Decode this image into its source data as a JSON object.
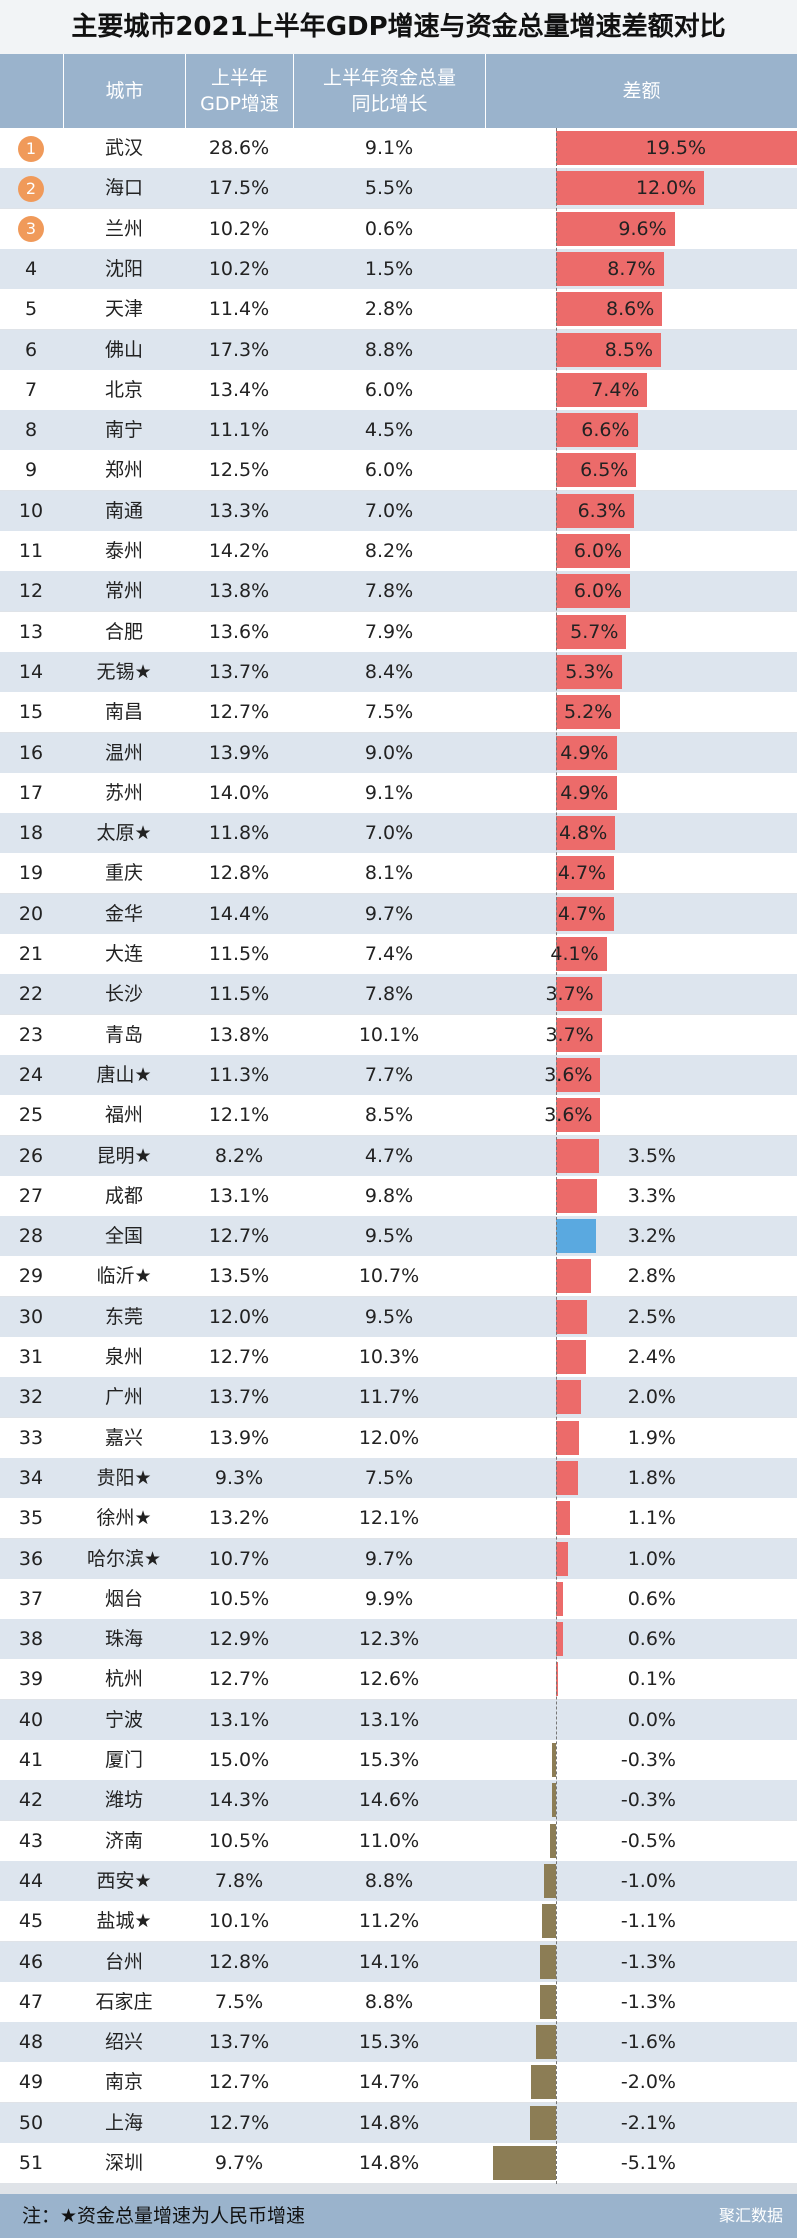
{
  "title": "主要城市2021上半年GDP增速与资金总量增速差额对比",
  "headers": {
    "rank": "",
    "city": "城市",
    "gdp": [
      "上半年",
      "GDP增速"
    ],
    "fund": [
      "上半年资金总量",
      "同比增长"
    ],
    "diff": "差额"
  },
  "footer_note": "注：★资金总量增速为人民币增速",
  "brand": "聚汇数据",
  "colors": {
    "positive": "#ec6b6a",
    "average": "#5aa9e0",
    "negative": "#8c7d55",
    "medal": "#f09a5a"
  },
  "chart_data": {
    "type": "table",
    "columns": [
      "城市",
      "上半年GDP增速",
      "上半年资金总量同比增长",
      "差额"
    ],
    "diff_range": [
      -5.1,
      19.5
    ],
    "rows": [
      {
        "rank": "1",
        "city": "武汉",
        "gdp": "28.6%",
        "fund": "9.1%",
        "diff": "19.5%",
        "value": 19.5
      },
      {
        "rank": "2",
        "city": "海口",
        "gdp": "17.5%",
        "fund": "5.5%",
        "diff": "12.0%",
        "value": 12.0
      },
      {
        "rank": "3",
        "city": "兰州",
        "gdp": "10.2%",
        "fund": "0.6%",
        "diff": "9.6%",
        "value": 9.6
      },
      {
        "rank": "4",
        "city": "沈阳",
        "gdp": "10.2%",
        "fund": "1.5%",
        "diff": "8.7%",
        "value": 8.7
      },
      {
        "rank": "5",
        "city": "天津",
        "gdp": "11.4%",
        "fund": "2.8%",
        "diff": "8.6%",
        "value": 8.6
      },
      {
        "rank": "6",
        "city": "佛山",
        "gdp": "17.3%",
        "fund": "8.8%",
        "diff": "8.5%",
        "value": 8.5
      },
      {
        "rank": "7",
        "city": "北京",
        "gdp": "13.4%",
        "fund": "6.0%",
        "diff": "7.4%",
        "value": 7.4
      },
      {
        "rank": "8",
        "city": "南宁",
        "gdp": "11.1%",
        "fund": "4.5%",
        "diff": "6.6%",
        "value": 6.6
      },
      {
        "rank": "9",
        "city": "郑州",
        "gdp": "12.5%",
        "fund": "6.0%",
        "diff": "6.5%",
        "value": 6.5
      },
      {
        "rank": "10",
        "city": "南通",
        "gdp": "13.3%",
        "fund": "7.0%",
        "diff": "6.3%",
        "value": 6.3
      },
      {
        "rank": "11",
        "city": "泰州",
        "gdp": "14.2%",
        "fund": "8.2%",
        "diff": "6.0%",
        "value": 6.0
      },
      {
        "rank": "12",
        "city": "常州",
        "gdp": "13.8%",
        "fund": "7.8%",
        "diff": "6.0%",
        "value": 6.0
      },
      {
        "rank": "13",
        "city": "合肥",
        "gdp": "13.6%",
        "fund": "7.9%",
        "diff": "5.7%",
        "value": 5.7
      },
      {
        "rank": "14",
        "city": "无锡★",
        "gdp": "13.7%",
        "fund": "8.4%",
        "diff": "5.3%",
        "value": 5.3
      },
      {
        "rank": "15",
        "city": "南昌",
        "gdp": "12.7%",
        "fund": "7.5%",
        "diff": "5.2%",
        "value": 5.2
      },
      {
        "rank": "16",
        "city": "温州",
        "gdp": "13.9%",
        "fund": "9.0%",
        "diff": "4.9%",
        "value": 4.9
      },
      {
        "rank": "17",
        "city": "苏州",
        "gdp": "14.0%",
        "fund": "9.1%",
        "diff": "4.9%",
        "value": 4.9
      },
      {
        "rank": "18",
        "city": "太原★",
        "gdp": "11.8%",
        "fund": "7.0%",
        "diff": "4.8%",
        "value": 4.8
      },
      {
        "rank": "19",
        "city": "重庆",
        "gdp": "12.8%",
        "fund": "8.1%",
        "diff": "4.7%",
        "value": 4.7
      },
      {
        "rank": "20",
        "city": "金华",
        "gdp": "14.4%",
        "fund": "9.7%",
        "diff": "4.7%",
        "value": 4.7
      },
      {
        "rank": "21",
        "city": "大连",
        "gdp": "11.5%",
        "fund": "7.4%",
        "diff": "4.1%",
        "value": 4.1
      },
      {
        "rank": "22",
        "city": "长沙",
        "gdp": "11.5%",
        "fund": "7.8%",
        "diff": "3.7%",
        "value": 3.7
      },
      {
        "rank": "23",
        "city": "青岛",
        "gdp": "13.8%",
        "fund": "10.1%",
        "diff": "3.7%",
        "value": 3.7
      },
      {
        "rank": "24",
        "city": "唐山★",
        "gdp": "11.3%",
        "fund": "7.7%",
        "diff": "3.6%",
        "value": 3.6
      },
      {
        "rank": "25",
        "city": "福州",
        "gdp": "12.1%",
        "fund": "8.5%",
        "diff": "3.6%",
        "value": 3.6
      },
      {
        "rank": "26",
        "city": "昆明★",
        "gdp": "8.2%",
        "fund": "4.7%",
        "diff": "3.5%",
        "value": 3.5
      },
      {
        "rank": "27",
        "city": "成都",
        "gdp": "13.1%",
        "fund": "9.8%",
        "diff": "3.3%",
        "value": 3.3
      },
      {
        "rank": "28",
        "city": "全国",
        "gdp": "12.7%",
        "fund": "9.5%",
        "diff": "3.2%",
        "value": 3.2
      },
      {
        "rank": "29",
        "city": "临沂★",
        "gdp": "13.5%",
        "fund": "10.7%",
        "diff": "2.8%",
        "value": 2.8
      },
      {
        "rank": "30",
        "city": "东莞",
        "gdp": "12.0%",
        "fund": "9.5%",
        "diff": "2.5%",
        "value": 2.5
      },
      {
        "rank": "31",
        "city": "泉州",
        "gdp": "12.7%",
        "fund": "10.3%",
        "diff": "2.4%",
        "value": 2.4
      },
      {
        "rank": "32",
        "city": "广州",
        "gdp": "13.7%",
        "fund": "11.7%",
        "diff": "2.0%",
        "value": 2.0
      },
      {
        "rank": "33",
        "city": "嘉兴",
        "gdp": "13.9%",
        "fund": "12.0%",
        "diff": "1.9%",
        "value": 1.9
      },
      {
        "rank": "34",
        "city": "贵阳★",
        "gdp": "9.3%",
        "fund": "7.5%",
        "diff": "1.8%",
        "value": 1.8
      },
      {
        "rank": "35",
        "city": "徐州★",
        "gdp": "13.2%",
        "fund": "12.1%",
        "diff": "1.1%",
        "value": 1.1
      },
      {
        "rank": "36",
        "city": "哈尔滨★",
        "gdp": "10.7%",
        "fund": "9.7%",
        "diff": "1.0%",
        "value": 1.0
      },
      {
        "rank": "37",
        "city": "烟台",
        "gdp": "10.5%",
        "fund": "9.9%",
        "diff": "0.6%",
        "value": 0.6
      },
      {
        "rank": "38",
        "city": "珠海",
        "gdp": "12.9%",
        "fund": "12.3%",
        "diff": "0.6%",
        "value": 0.6
      },
      {
        "rank": "39",
        "city": "杭州",
        "gdp": "12.7%",
        "fund": "12.6%",
        "diff": "0.1%",
        "value": 0.1
      },
      {
        "rank": "40",
        "city": "宁波",
        "gdp": "13.1%",
        "fund": "13.1%",
        "diff": "0.0%",
        "value": 0.0
      },
      {
        "rank": "41",
        "city": "厦门",
        "gdp": "15.0%",
        "fund": "15.3%",
        "diff": "-0.3%",
        "value": -0.3
      },
      {
        "rank": "42",
        "city": "潍坊",
        "gdp": "14.3%",
        "fund": "14.6%",
        "diff": "-0.3%",
        "value": -0.3
      },
      {
        "rank": "43",
        "city": "济南",
        "gdp": "10.5%",
        "fund": "11.0%",
        "diff": "-0.5%",
        "value": -0.5
      },
      {
        "rank": "44",
        "city": "西安★",
        "gdp": "7.8%",
        "fund": "8.8%",
        "diff": "-1.0%",
        "value": -1.0
      },
      {
        "rank": "45",
        "city": "盐城★",
        "gdp": "10.1%",
        "fund": "11.2%",
        "diff": "-1.1%",
        "value": -1.1
      },
      {
        "rank": "46",
        "city": "台州",
        "gdp": "12.8%",
        "fund": "14.1%",
        "diff": "-1.3%",
        "value": -1.3
      },
      {
        "rank": "47",
        "city": "石家庄",
        "gdp": "7.5%",
        "fund": "8.8%",
        "diff": "-1.3%",
        "value": -1.3
      },
      {
        "rank": "48",
        "city": "绍兴",
        "gdp": "13.7%",
        "fund": "15.3%",
        "diff": "-1.6%",
        "value": -1.6
      },
      {
        "rank": "49",
        "city": "南京",
        "gdp": "12.7%",
        "fund": "14.7%",
        "diff": "-2.0%",
        "value": -2.0
      },
      {
        "rank": "50",
        "city": "上海",
        "gdp": "12.7%",
        "fund": "14.8%",
        "diff": "-2.1%",
        "value": -2.1
      },
      {
        "rank": "51",
        "city": "深圳",
        "gdp": "9.7%",
        "fund": "14.8%",
        "diff": "-5.1%",
        "value": -5.1
      }
    ]
  }
}
